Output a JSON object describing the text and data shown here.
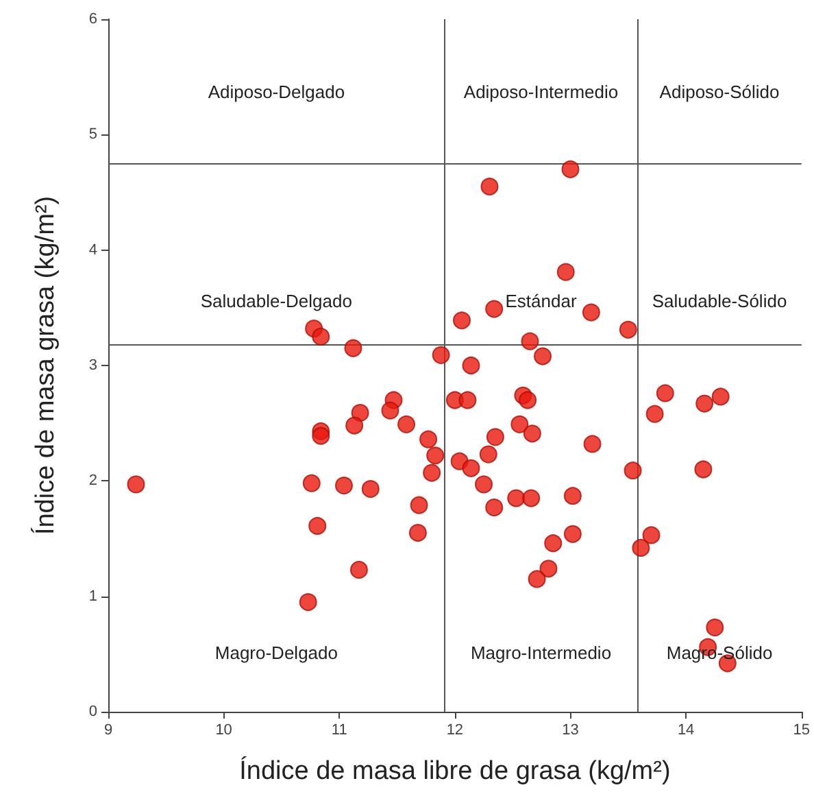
{
  "chart_data": {
    "type": "scatter",
    "xlabel": "Índice de masa libre de grasa (kg/m²)",
    "ylabel": "Índice de masa grasa (kg/m²)",
    "xlim": [
      9,
      15
    ],
    "xticks": [
      9,
      10,
      11,
      12,
      13,
      14,
      15
    ],
    "ylim": [
      0,
      6
    ],
    "yticks": [
      0,
      1,
      2,
      3,
      4,
      5,
      6
    ],
    "grid": false,
    "marker": "circle",
    "ref_lines": [
      {
        "axis": "x",
        "value": 11.91,
        "color": "#555555"
      },
      {
        "axis": "x",
        "value": 13.58,
        "color": "#555555"
      },
      {
        "axis": "y",
        "value": 4.745,
        "color": "#555555"
      },
      {
        "axis": "y",
        "value": 3.18,
        "color": "#555555"
      }
    ],
    "annotations": [
      "Adiposo-Delgado",
      "Adiposo-Intermedio",
      "Adiposo-Sólido",
      "Saludable-Delgado",
      "Estándar",
      "Saludable-Sólido",
      "Magro-Delgado",
      "Magro-Intermedio",
      "Magro-Sólido"
    ],
    "series": [
      {
        "color": "#e8180c",
        "x": [
          9.24,
          10.78,
          10.84,
          11.12,
          11.88,
          11.47,
          11.44,
          11.18,
          11.13,
          11.58,
          10.84,
          10.84,
          11.77,
          11.83,
          11.8,
          10.76,
          11.04,
          11.27,
          11.69,
          10.81,
          11.68,
          11.17,
          10.73,
          13.0,
          12.3,
          12.96,
          12.34,
          13.18,
          12.06,
          13.5,
          12.65,
          12.76,
          12.14,
          12.0,
          12.11,
          12.59,
          12.63,
          13.82,
          14.16,
          14.3,
          13.73,
          12.56,
          12.67,
          12.35,
          13.19,
          12.29,
          12.04,
          12.14,
          13.54,
          14.15,
          12.25,
          12.53,
          12.66,
          13.02,
          12.34,
          13.02,
          13.7,
          13.61,
          12.85,
          12.81,
          12.71,
          14.25,
          14.19,
          14.36
        ],
        "values": [
          1.97,
          3.32,
          3.25,
          3.15,
          3.09,
          2.7,
          2.61,
          2.59,
          2.48,
          2.49,
          2.43,
          2.39,
          2.36,
          2.22,
          2.07,
          1.98,
          1.96,
          1.93,
          1.79,
          1.61,
          1.55,
          1.23,
          0.95,
          4.7,
          4.55,
          3.81,
          3.49,
          3.46,
          3.39,
          3.31,
          3.21,
          3.08,
          3.0,
          2.7,
          2.7,
          2.74,
          2.7,
          2.76,
          2.67,
          2.73,
          2.58,
          2.49,
          2.41,
          2.38,
          2.32,
          2.23,
          2.17,
          2.11,
          2.09,
          2.1,
          1.97,
          1.85,
          1.85,
          1.87,
          1.77,
          1.54,
          1.53,
          1.42,
          1.46,
          1.24,
          1.15,
          0.73,
          0.56,
          0.42
        ]
      }
    ]
  }
}
